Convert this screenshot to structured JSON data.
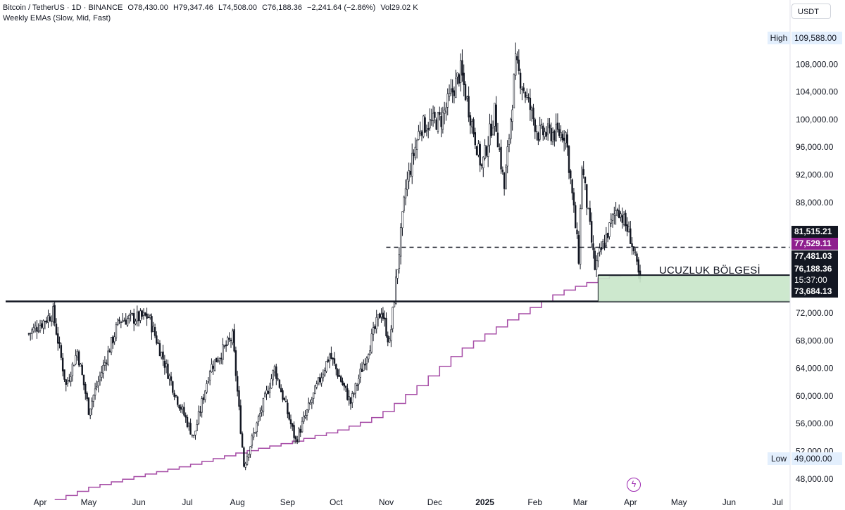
{
  "legend": {
    "symbol": "Bitcoin / TetherUS · 1D · BINANCE",
    "open": "O78,430.00",
    "high": "H79,347.46",
    "low": "L74,508.00",
    "close": "C76,188.36",
    "change": "−2,241.64 (−2.86%)",
    "volume": "Vol29.02 K",
    "indicator": "Weekly EMAs (Slow, Mid, Fast)"
  },
  "toolbar": {
    "currency": "USDT"
  },
  "price_scale": {
    "high_label": "High",
    "high_value": "109,588.00",
    "low_label": "Low",
    "low_value": "49,000.00",
    "level_dashed": "81,515.21",
    "ema_value": "77,529.11",
    "zone_top": "77,481.03",
    "last_price": "76,188.36",
    "countdown": "15:37:00",
    "zone_bottom": "73,684.13"
  },
  "annotation": {
    "zone_label": "UCUZLUK BÖLGESİ"
  },
  "colors": {
    "up": "#131722",
    "down": "#131722",
    "ema": "#a64ca6",
    "zone_fill": "#c8e6c9",
    "zone_border": "#131722",
    "ema_tag": "#8e1e8e",
    "dark_tag": "#131722",
    "hl_bg": "#e3effd"
  },
  "chart_data": {
    "type": "candlestick",
    "title": "Bitcoin / TetherUS · 1D · BINANCE",
    "ylim": [
      44000,
      113000
    ],
    "y_ticks": [
      48000,
      52000,
      56000,
      60000,
      64000,
      68000,
      72000,
      76000,
      80000,
      84000,
      88000,
      92000,
      96000,
      100000,
      104000,
      108000,
      112000
    ],
    "x_ticks": [
      "Apr",
      "May",
      "Jun",
      "Jul",
      "Aug",
      "Sep",
      "Oct",
      "Nov",
      "Dec",
      "2025",
      "Feb",
      "Mar",
      "Apr",
      "May",
      "Jun",
      "Jul"
    ],
    "x_tick_bold": "2025",
    "price_path": [
      [
        "Mar 25 2024",
        69000
      ],
      [
        "Apr 9 2024",
        72000
      ],
      [
        "Apr 17 2024",
        61500
      ],
      [
        "Apr 24 2024",
        66500
      ],
      [
        "May 1 2024",
        58000
      ],
      [
        "May 20 2024",
        71000
      ],
      [
        "Jun 7 2024",
        71500
      ],
      [
        "Jun 24 2024",
        60000
      ],
      [
        "Jul 5 2024",
        54000
      ],
      [
        "Jul 15 2024",
        64000
      ],
      [
        "Jul 29 2024",
        68500
      ],
      [
        "Aug 5 2024",
        50000
      ],
      [
        "Aug 24 2024",
        64000
      ],
      [
        "Sep 6 2024",
        53500
      ],
      [
        "Sep 27 2024",
        66000
      ],
      [
        "Oct 10 2024",
        59000
      ],
      [
        "Oct 29 2024",
        72500
      ],
      [
        "Nov 3 2024",
        67500
      ],
      [
        "Nov 13 2024",
        90000
      ],
      [
        "Nov 22 2024",
        99000
      ],
      [
        "Dec 5 2024",
        100000
      ],
      [
        "Dec 17 2024",
        107000
      ],
      [
        "Dec 30 2024",
        93000
      ],
      [
        "Jan 7 2025",
        101000
      ],
      [
        "Jan 13 2025",
        90000
      ],
      [
        "Jan 20 2025",
        108000
      ],
      [
        "Feb 3 2025",
        98000
      ],
      [
        "Feb 20 2025",
        98000
      ],
      [
        "Feb 28 2025",
        80000
      ],
      [
        "Mar 2 2025",
        93500
      ],
      [
        "Mar 10 2025",
        78500
      ],
      [
        "Mar 24 2025",
        87500
      ],
      [
        "Apr 1 2025",
        83000
      ],
      [
        "Apr 6 2025",
        77500
      ],
      [
        "Apr 7 2025",
        76188
      ]
    ],
    "high": 109588,
    "low": 49000,
    "weekly_ema": [
      [
        "Apr 10 2024",
        45000
      ],
      [
        "May 1 2024",
        46800
      ],
      [
        "Jun 1 2024",
        48500
      ],
      [
        "Jul 1 2024",
        50000
      ],
      [
        "Aug 1 2024",
        51800
      ],
      [
        "Sep 1 2024",
        53300
      ],
      [
        "Oct 1 2024",
        55000
      ],
      [
        "Oct 20 2024",
        56500
      ],
      [
        "Nov 1 2024",
        58000
      ],
      [
        "Nov 20 2024",
        61500
      ],
      [
        "Dec 15 2024",
        66500
      ],
      [
        "Jan 15 2025",
        71000
      ],
      [
        "Feb 15 2025",
        75000
      ],
      [
        "Mar 15 2025",
        77200
      ],
      [
        "Apr 7 2025",
        77529.11
      ]
    ],
    "horizontal_levels": [
      {
        "value": 81515.21,
        "style": "dashed",
        "from": "Nov 1 2024"
      },
      {
        "value": 73684.13,
        "style": "solid",
        "from": "Mar 2024"
      },
      {
        "value": 77481.03,
        "style": "solid",
        "from": "Mar 12 2025"
      }
    ],
    "zone": {
      "from": "Mar 12 2025",
      "top": 77481.03,
      "bottom": 73684.13,
      "label": "UCUZLUK BÖLGESİ"
    }
  }
}
